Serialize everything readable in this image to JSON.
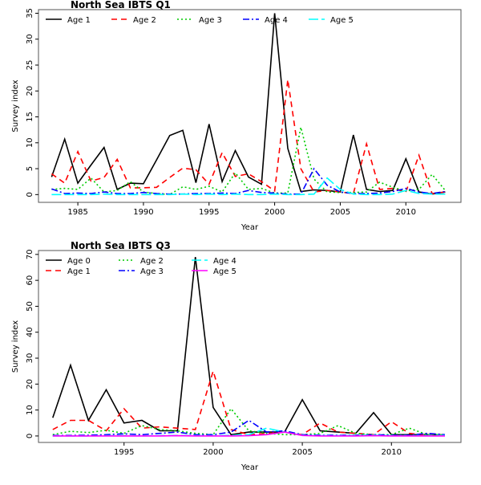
{
  "chart_data": [
    {
      "type": "line",
      "title": "North Sea IBTS Q1",
      "xlabel": "Year",
      "ylabel": "Survey index",
      "xlim": [
        1982,
        2014.2
      ],
      "ylim": [
        -1.5,
        35.7
      ],
      "xticks": [
        1985,
        1990,
        1995,
        2000,
        2005,
        2010
      ],
      "yticks": [
        0,
        5,
        10,
        15,
        20,
        25,
        30,
        35
      ],
      "legend": "top-left",
      "legend_cols": 5,
      "x": [
        1983,
        1984,
        1985,
        1986,
        1987,
        1988,
        1989,
        1990,
        1991,
        1992,
        1993,
        1994,
        1995,
        1996,
        1997,
        1998,
        1999,
        2000,
        2001,
        2002,
        2003,
        2004,
        2005,
        2006,
        2007,
        2008,
        2009,
        2010,
        2011,
        2012,
        2013
      ],
      "series": [
        {
          "name": "Age 1",
          "color": "#000000",
          "dash": "",
          "values": [
            3.4,
            10.7,
            2.2,
            5.7,
            9.1,
            1,
            2.2,
            2.1,
            6.7,
            11.4,
            12.4,
            2.3,
            13.6,
            2.5,
            8.5,
            3.4,
            2,
            35,
            8.9,
            0.6,
            0.9,
            0.8,
            0.5,
            11.5,
            1,
            0.6,
            0.8,
            6.9,
            0.5,
            0.1,
            0.5
          ]
        },
        {
          "name": "Age 2",
          "color": "#ff0000",
          "dash": "7,5",
          "values": [
            4,
            2.2,
            8.3,
            2.6,
            3.3,
            6.8,
            1.3,
            1.3,
            1.4,
            3.3,
            5.1,
            4.8,
            2,
            8.1,
            3.5,
            4,
            2.5,
            0.7,
            22.2,
            5,
            0.5,
            0.8,
            0.5,
            0.2,
            9.8,
            1,
            1.2,
            0.5,
            7.6,
            0.2,
            0.5
          ]
        },
        {
          "name": "Age 3",
          "color": "#00cc00",
          "dash": "2,3",
          "values": [
            1,
            1.2,
            1,
            3.2,
            0.5,
            0.8,
            2.5,
            0.5,
            0.2,
            0,
            1.5,
            1,
            1.6,
            0.5,
            4.2,
            1,
            1.2,
            0.3,
            0.3,
            13,
            3,
            0.5,
            0.4,
            0.4,
            0.5,
            2.4,
            1.4,
            0.7,
            1,
            3.9,
            0.8
          ]
        },
        {
          "name": "Age 4",
          "color": "#0000ff",
          "dash": "8,3,2,3",
          "values": [
            1.1,
            0.2,
            0.3,
            0.2,
            0.5,
            0.2,
            0.2,
            0.4,
            0.2,
            0.1,
            0.1,
            0.2,
            0.2,
            0.3,
            0.2,
            0.8,
            0.4,
            0.3,
            0.1,
            0.1,
            5,
            1.8,
            0.5,
            0.2,
            0.2,
            0.3,
            0.6,
            1.2,
            0.5,
            0.2,
            0.6
          ]
        },
        {
          "name": "Age 5",
          "color": "#00ffff",
          "dash": "12,4",
          "values": [
            0,
            0,
            0,
            0,
            0.1,
            0,
            0,
            0,
            0,
            0,
            0.1,
            0,
            0.1,
            0,
            0.1,
            0,
            0,
            0.1,
            0,
            0,
            0.1,
            3.2,
            1,
            0.1,
            0,
            0,
            0.1,
            0.8,
            0.2,
            0.1,
            0.1
          ]
        }
      ]
    },
    {
      "type": "line",
      "title": "North Sea IBTS Q3",
      "xlabel": "Year",
      "ylabel": "Survey index",
      "xlim": [
        1990.2,
        2013.9
      ],
      "ylim": [
        -2.5,
        71.5
      ],
      "xticks": [
        1995,
        2000,
        2005,
        2010
      ],
      "yticks": [
        0,
        10,
        20,
        30,
        40,
        50,
        60,
        70
      ],
      "legend": "top-left",
      "legend_cols": 3,
      "x": [
        1991,
        1992,
        1993,
        1994,
        1995,
        1996,
        1997,
        1998,
        1999,
        2000,
        2001,
        2002,
        2003,
        2004,
        2005,
        2006,
        2007,
        2008,
        2009,
        2010,
        2011,
        2012,
        2013
      ],
      "series": [
        {
          "name": "Age 0",
          "color": "#000000",
          "dash": "",
          "values": [
            7,
            27.3,
            6,
            17.8,
            5,
            6,
            2,
            2,
            69,
            11,
            0.5,
            1.5,
            1.5,
            1.5,
            14,
            2,
            1.5,
            1,
            9,
            0.5,
            0.5,
            0.5,
            0.5
          ]
        },
        {
          "name": "Age 1",
          "color": "#ff0000",
          "dash": "7,5",
          "values": [
            2.5,
            6,
            6,
            2,
            10.5,
            3,
            3.5,
            3,
            2.5,
            25,
            2.5,
            0.5,
            1,
            1.5,
            0.5,
            5,
            1.5,
            1,
            0.5,
            5.5,
            1,
            0.3,
            0.5
          ]
        },
        {
          "name": "Age 2",
          "color": "#00cc00",
          "dash": "2,3",
          "values": [
            0.5,
            1.8,
            1.3,
            2.2,
            1,
            4,
            2.5,
            2,
            1,
            0.5,
            10.5,
            2,
            1,
            0.5,
            0.5,
            1,
            4,
            1,
            0.5,
            0.5,
            3,
            0.5,
            0.5
          ]
        },
        {
          "name": "Age 3",
          "color": "#0000ff",
          "dash": "8,3,2,3",
          "values": [
            0.2,
            0.2,
            0.3,
            0.5,
            0.8,
            0.5,
            1,
            1.5,
            0.5,
            0.5,
            1.5,
            6,
            1.5,
            2,
            0.5,
            0.3,
            0.3,
            0.3,
            0.5,
            0.3,
            0.3,
            1,
            0.5
          ]
        },
        {
          "name": "Age 4",
          "color": "#00ffff",
          "dash": "12,4",
          "values": [
            0,
            0,
            0,
            0.1,
            0.1,
            0,
            0.1,
            0.2,
            0.1,
            0.1,
            0.2,
            0.5,
            3,
            1.5,
            0.3,
            0.1,
            0.1,
            0.2,
            0.3,
            0.1,
            0.1,
            0.2,
            0.2
          ]
        },
        {
          "name": "Age 5",
          "color": "#ff00ff",
          "dash": "",
          "values": [
            0,
            0,
            0,
            0,
            0,
            0,
            0,
            0.1,
            0,
            0,
            0,
            0.1,
            0.5,
            1.5,
            0.2,
            0,
            0,
            0,
            0.1,
            0,
            0,
            0,
            0
          ]
        }
      ]
    }
  ]
}
